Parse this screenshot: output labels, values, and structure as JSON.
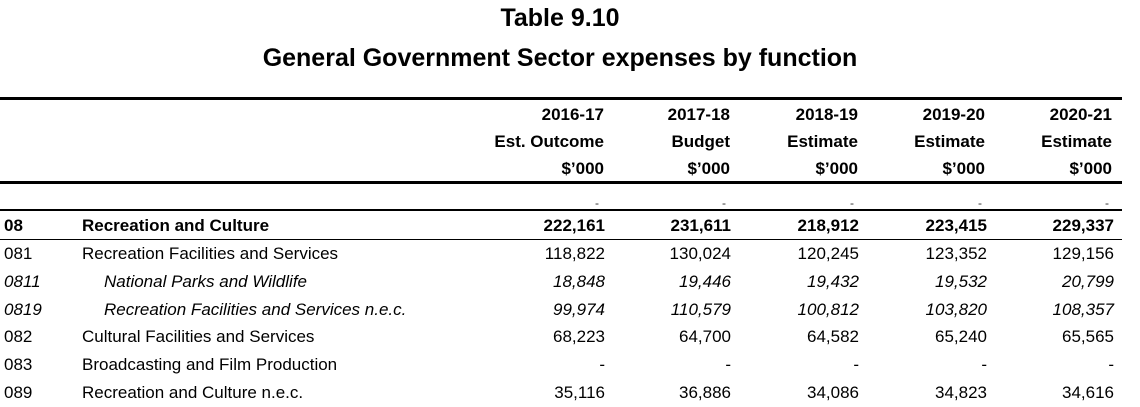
{
  "table": {
    "title": "Table 9.10",
    "subtitle": "General Government Sector expenses by function",
    "columns": [
      {
        "line1": "2016-17",
        "line2": "Est. Outcome",
        "unit": "$’000"
      },
      {
        "line1": "2017-18",
        "line2": "Budget",
        "unit": "$’000"
      },
      {
        "line1": "2018-19",
        "line2": "Estimate",
        "unit": "$’000"
      },
      {
        "line1": "2019-20",
        "line2": "Estimate",
        "unit": "$’000"
      },
      {
        "line1": "2020-21",
        "line2": "Estimate",
        "unit": "$’000"
      }
    ],
    "dash": "-",
    "rows": [
      {
        "code": "08",
        "label": "Recreation and Culture",
        "style": "bold",
        "values": [
          "222,161",
          "231,611",
          "218,912",
          "223,415",
          "229,337"
        ]
      },
      {
        "code": "081",
        "label": "Recreation Facilities and Services",
        "style": "normal",
        "values": [
          "118,822",
          "130,024",
          "120,245",
          "123,352",
          "129,156"
        ]
      },
      {
        "code": "0811",
        "label": "National Parks and Wildlife",
        "style": "italic",
        "values": [
          "18,848",
          "19,446",
          "19,432",
          "19,532",
          "20,799"
        ]
      },
      {
        "code": "0819",
        "label": "Recreation Facilities and Services n.e.c.",
        "style": "italic",
        "values": [
          "99,974",
          "110,579",
          "100,812",
          "103,820",
          "108,357"
        ]
      },
      {
        "code": "082",
        "label": "Cultural Facilities and Services",
        "style": "normal",
        "values": [
          "68,223",
          "64,700",
          "64,582",
          "65,240",
          "65,565"
        ]
      },
      {
        "code": "083",
        "label": "Broadcasting and Film Production",
        "style": "normal",
        "values": [
          "-",
          "-",
          "-",
          "-",
          "-"
        ]
      },
      {
        "code": "089",
        "label": "Recreation and Culture n.e.c.",
        "style": "normal",
        "values": [
          "35,116",
          "36,886",
          "34,086",
          "34,823",
          "34,616"
        ]
      }
    ]
  }
}
